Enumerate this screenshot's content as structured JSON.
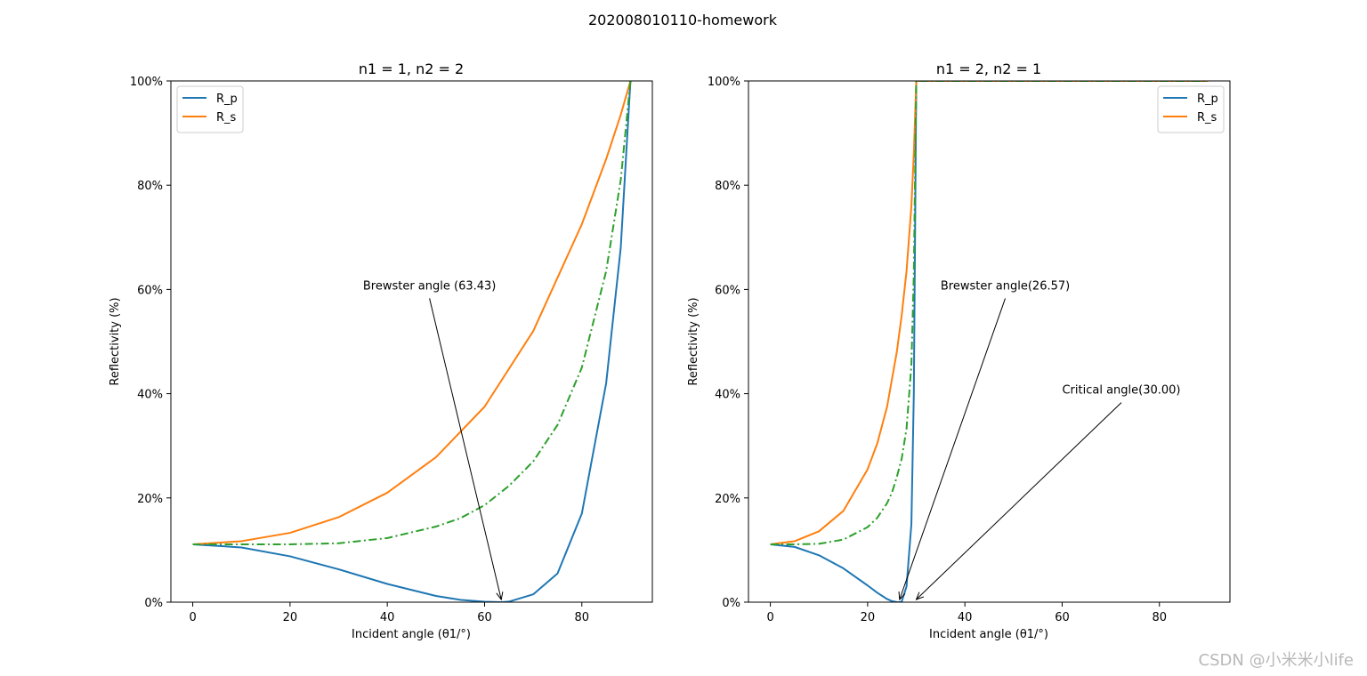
{
  "suptitle": "202008010110-homework",
  "watermark": "CSDN @小米米小life",
  "colors": {
    "rp": "#1f77b4",
    "rs": "#ff7f0e",
    "avg": "#2ca02c"
  },
  "chart_data": [
    {
      "type": "line",
      "title": "n1 = 1, n2 = 2",
      "xlabel": "Incident angle (θ1/°)",
      "ylabel": "Reflectivity (%)",
      "xlim": [
        -4.5,
        94.5
      ],
      "ylim": [
        0,
        100
      ],
      "xticks": [
        0,
        20,
        40,
        60,
        80
      ],
      "yticks": [
        0,
        20,
        40,
        60,
        80,
        100
      ],
      "ytick_labels": [
        "0%",
        "20%",
        "40%",
        "60%",
        "80%",
        "100%"
      ],
      "legend": {
        "position": "upper-left",
        "entries": [
          "R_p",
          "R_s"
        ]
      },
      "series": [
        {
          "name": "R_p",
          "color": "#1f77b4",
          "style": "solid",
          "x": [
            0,
            10,
            20,
            30,
            40,
            50,
            55,
            60,
            63.43,
            65,
            70,
            75,
            80,
            85,
            88,
            90
          ],
          "y": [
            11.1,
            10.5,
            8.8,
            6.3,
            3.5,
            1.2,
            0.45,
            0.08,
            0,
            0.1,
            1.5,
            5.5,
            17.0,
            42.0,
            68.0,
            100
          ]
        },
        {
          "name": "R_s",
          "color": "#ff7f0e",
          "style": "solid",
          "x": [
            0,
            10,
            20,
            30,
            40,
            50,
            60,
            70,
            80,
            85,
            88,
            90
          ],
          "y": [
            11.1,
            11.7,
            13.3,
            16.3,
            21.0,
            27.8,
            37.5,
            52.0,
            72.5,
            85.0,
            93.5,
            100
          ]
        },
        {
          "color": "#2ca02c",
          "style": "dashdot",
          "x": [
            0,
            10,
            20,
            30,
            40,
            50,
            55,
            60,
            65,
            70,
            75,
            80,
            85,
            88,
            90
          ],
          "y": [
            11.1,
            11.1,
            11.1,
            11.3,
            12.3,
            14.5,
            16.1,
            18.6,
            22.3,
            27.0,
            34.0,
            45.0,
            63.5,
            81.0,
            100
          ]
        }
      ],
      "annotations": [
        {
          "text": "Brewster angle (63.43)",
          "text_xy": [
            35,
            60
          ],
          "arrow_to": [
            63.43,
            0
          ]
        }
      ]
    },
    {
      "type": "line",
      "title": "n1 = 2, n2 = 1",
      "xlabel": "Incident angle (θ1/°)",
      "ylabel": "Reflectivity (%)",
      "xlim": [
        -4.5,
        94.5
      ],
      "ylim": [
        0,
        100
      ],
      "xticks": [
        0,
        20,
        40,
        60,
        80
      ],
      "yticks": [
        0,
        20,
        40,
        60,
        80,
        100
      ],
      "ytick_labels": [
        "0%",
        "20%",
        "40%",
        "60%",
        "80%",
        "100%"
      ],
      "legend": {
        "position": "upper-right",
        "entries": [
          "R_p",
          "R_s"
        ]
      },
      "series": [
        {
          "name": "R_p",
          "color": "#1f77b4",
          "style": "solid",
          "x": [
            0,
            5,
            10,
            15,
            20,
            22,
            24,
            25,
            26,
            26.57,
            27,
            28,
            29,
            29.5,
            30,
            90
          ],
          "y": [
            11.1,
            10.6,
            9.0,
            6.5,
            3.2,
            1.8,
            0.6,
            0.2,
            0.03,
            0,
            0.1,
            3.0,
            15.0,
            40.0,
            100,
            100
          ]
        },
        {
          "name": "R_s",
          "color": "#ff7f0e",
          "style": "solid",
          "x": [
            0,
            5,
            10,
            15,
            20,
            22,
            24,
            26,
            27,
            28,
            29,
            29.5,
            30,
            90
          ],
          "y": [
            11.1,
            11.7,
            13.6,
            17.5,
            25.5,
            30.5,
            37.5,
            48.0,
            55.0,
            63.5,
            76.0,
            86.0,
            100,
            100
          ]
        },
        {
          "color": "#2ca02c",
          "style": "dashdot",
          "x": [
            0,
            5,
            10,
            15,
            20,
            22,
            24,
            25,
            26,
            27,
            28,
            29,
            29.5,
            30,
            90
          ],
          "y": [
            11.1,
            11.1,
            11.2,
            12.0,
            14.4,
            16.2,
            19.0,
            21.0,
            24.0,
            27.5,
            33.3,
            45.5,
            63.0,
            100,
            100
          ]
        }
      ],
      "annotations": [
        {
          "text": "Brewster angle(26.57)",
          "text_xy": [
            35,
            60
          ],
          "arrow_to": [
            26.57,
            0
          ]
        },
        {
          "text": "Critical angle(30.00)",
          "text_xy": [
            60,
            40
          ],
          "arrow_to": [
            30,
            0
          ]
        }
      ]
    }
  ]
}
